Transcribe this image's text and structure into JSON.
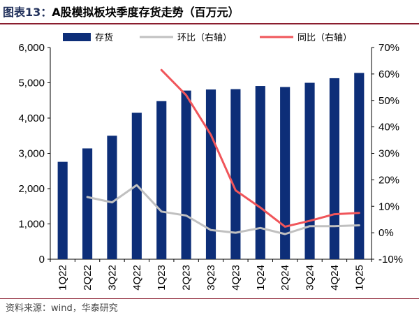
{
  "title": {
    "label": "图表13：",
    "text": "A股模拟板块季度存货走势（百万元）"
  },
  "source": "资料来源：wind，华泰研究",
  "chart_data": {
    "type": "bar",
    "categories": [
      "1Q22",
      "2Q22",
      "3Q22",
      "4Q22",
      "1Q23",
      "2Q23",
      "3Q23",
      "4Q23",
      "1Q24",
      "2Q24",
      "3Q24",
      "4Q24",
      "1Q25"
    ],
    "series": [
      {
        "name": "存货",
        "type": "bar",
        "axis": "left",
        "color": "#0d2e78",
        "values": [
          2760,
          3140,
          3500,
          4150,
          4480,
          4780,
          4810,
          4820,
          4910,
          4880,
          5000,
          5130,
          5280
        ]
      },
      {
        "name": "环比（右轴）",
        "type": "line",
        "axis": "right",
        "color": "#c0c0c0",
        "values": [
          null,
          13.5,
          11.5,
          18.0,
          8.0,
          6.5,
          1.0,
          0.0,
          1.8,
          -0.5,
          2.5,
          2.5,
          2.8
        ]
      },
      {
        "name": "同比（右轴）",
        "type": "line",
        "axis": "right",
        "color": "#f0555a",
        "values": [
          null,
          null,
          null,
          null,
          61.5,
          52.0,
          37.0,
          16.0,
          9.5,
          2.3,
          4.5,
          7.0,
          7.5
        ]
      }
    ],
    "ylim": [
      0,
      6000
    ],
    "yticks": [
      "0",
      "1,000",
      "2,000",
      "3,000",
      "4,000",
      "5,000",
      "6,000"
    ],
    "y2lim": [
      -10,
      70
    ],
    "y2ticks": [
      "-10%",
      "0%",
      "10%",
      "20%",
      "30%",
      "40%",
      "50%",
      "60%",
      "70%"
    ],
    "legend_position": "top",
    "grid": false
  }
}
